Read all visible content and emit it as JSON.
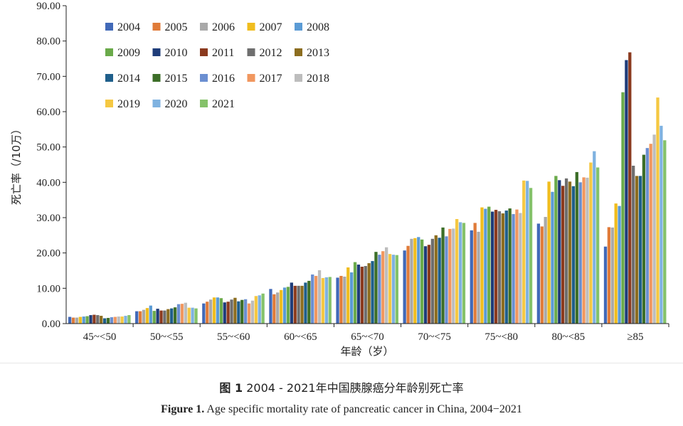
{
  "chart_data": {
    "type": "bar",
    "title": "",
    "xlabel": "年龄（岁）",
    "ylabel": "死亡率（/10万）",
    "ylim": [
      0,
      90
    ],
    "yticks": [
      "0.00",
      "10.00",
      "20.00",
      "30.00",
      "40.00",
      "50.00",
      "60.00",
      "70.00",
      "80.00",
      "90.00"
    ],
    "categories": [
      "45~<50",
      "50~<55",
      "55~<60",
      "60~<65",
      "65~<70",
      "70~<75",
      "75~<80",
      "80~<85",
      "≥85"
    ],
    "legend_position": "top-left",
    "series": [
      {
        "name": "2004",
        "color": "#4169b8",
        "values": [
          1.9,
          3.5,
          5.7,
          9.8,
          13.0,
          20.7,
          26.4,
          28.3,
          21.8
        ]
      },
      {
        "name": "2005",
        "color": "#e07b39",
        "values": [
          1.7,
          3.5,
          6.2,
          8.3,
          13.5,
          22.0,
          28.5,
          27.5,
          27.3
        ]
      },
      {
        "name": "2006",
        "color": "#a9a9a9",
        "values": [
          1.7,
          3.9,
          6.8,
          8.8,
          13.3,
          24.0,
          26.0,
          30.2,
          27.2
        ]
      },
      {
        "name": "2007",
        "color": "#f0bd1e",
        "values": [
          1.9,
          4.4,
          7.4,
          9.5,
          15.9,
          24.2,
          32.9,
          40.2,
          34.0
        ]
      },
      {
        "name": "2008",
        "color": "#5b9bd5",
        "values": [
          2.0,
          5.1,
          7.4,
          10.2,
          14.5,
          24.5,
          32.5,
          37.3,
          33.3
        ]
      },
      {
        "name": "2009",
        "color": "#6aaa4a",
        "values": [
          2.1,
          3.6,
          7.2,
          10.4,
          17.4,
          23.8,
          33.1,
          41.8,
          65.5
        ]
      },
      {
        "name": "2010",
        "color": "#1f3d7a",
        "values": [
          2.4,
          4.2,
          6.0,
          11.6,
          16.7,
          21.9,
          31.7,
          40.6,
          74.6
        ]
      },
      {
        "name": "2011",
        "color": "#8b3a1e",
        "values": [
          2.5,
          3.7,
          6.2,
          10.7,
          16.1,
          22.3,
          32.2,
          39.0,
          76.8
        ]
      },
      {
        "name": "2012",
        "color": "#6e6e6e",
        "values": [
          2.4,
          3.7,
          6.8,
          10.7,
          16.3,
          24.0,
          31.8,
          41.1,
          44.7
        ]
      },
      {
        "name": "2013",
        "color": "#8c6d1f",
        "values": [
          2.2,
          4.1,
          7.3,
          10.7,
          17.1,
          25.0,
          31.2,
          40.2,
          41.8
        ]
      },
      {
        "name": "2014",
        "color": "#1f5f8b",
        "values": [
          1.5,
          4.3,
          6.3,
          11.6,
          17.7,
          24.3,
          32.0,
          38.9,
          41.8
        ]
      },
      {
        "name": "2015",
        "color": "#3c6e28",
        "values": [
          1.6,
          4.6,
          6.7,
          12.1,
          20.3,
          27.2,
          32.6,
          42.9,
          47.8
        ]
      },
      {
        "name": "2016",
        "color": "#6b8fd1",
        "values": [
          1.8,
          5.5,
          6.9,
          13.9,
          19.5,
          24.7,
          31.0,
          40.0,
          49.7
        ]
      },
      {
        "name": "2017",
        "color": "#f1975f",
        "values": [
          1.9,
          5.6,
          5.7,
          13.5,
          20.5,
          26.8,
          32.3,
          41.4,
          50.9
        ]
      },
      {
        "name": "2018",
        "color": "#bdbdbd",
        "values": [
          2.0,
          5.9,
          6.5,
          15.1,
          21.6,
          26.9,
          31.3,
          41.3,
          53.5
        ]
      },
      {
        "name": "2019",
        "color": "#f5c842",
        "values": [
          2.0,
          4.5,
          7.8,
          12.9,
          19.7,
          29.6,
          40.5,
          45.6,
          64.0
        ]
      },
      {
        "name": "2020",
        "color": "#7fb2e0",
        "values": [
          2.2,
          4.5,
          8.0,
          13.1,
          19.5,
          28.7,
          40.4,
          48.8,
          56.0
        ]
      },
      {
        "name": "2021",
        "color": "#85c26a",
        "values": [
          2.4,
          4.3,
          8.5,
          13.2,
          19.4,
          28.5,
          38.4,
          44.2,
          51.9
        ]
      }
    ]
  },
  "captions": {
    "cn_label": "图 1",
    "cn_text": "2004 - 2021年中国胰腺癌分年龄别死亡率",
    "en_label": "Figure  1.",
    "en_text": "Age specific mortality rate of pancreatic cancer in China, 2004−2021"
  }
}
